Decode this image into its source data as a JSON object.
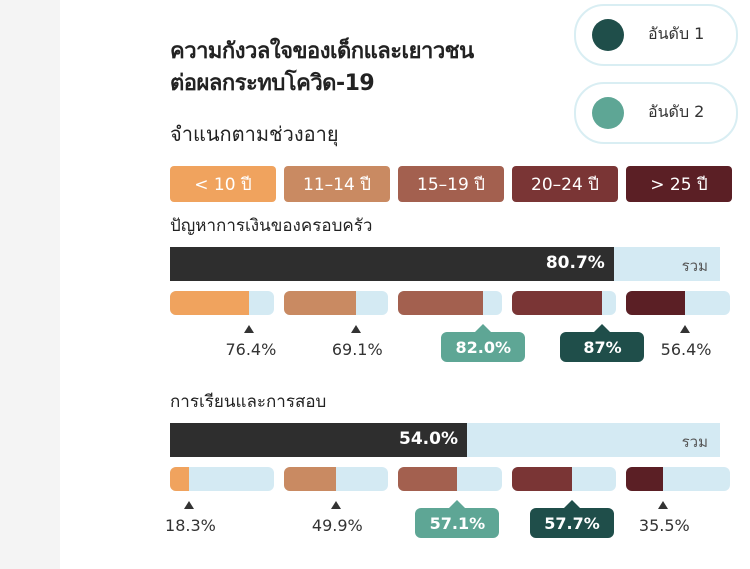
{
  "header": {
    "title_line1": "ความกังวลใจของเด็กและเยาวชน",
    "title_line2": "ต่อผลกระทบโควิด-19",
    "subtitle": "จำแนกตามช่วงอายุ"
  },
  "legend": [
    {
      "label": "อันดับ 1",
      "color": "#1f4e4a"
    },
    {
      "label": "อันดับ 2",
      "color": "#5ea695"
    }
  ],
  "age_groups": [
    {
      "label": "< 10 ปี",
      "color": "#f0a35e"
    },
    {
      "label": "11–14 ปี",
      "color": "#c98a62"
    },
    {
      "label": "15–19 ปี",
      "color": "#a3604f"
    },
    {
      "label": "20–24 ปี",
      "color": "#7a3535"
    },
    {
      "label": "> 25 ปี",
      "color": "#5b1f25"
    }
  ],
  "total_tag": "รวม",
  "chart_data": {
    "type": "bar",
    "title": "ความกังวลใจของเด็กและเยาวชนต่อผลกระทบโควิด-19",
    "subtitle": "จำแนกตามช่วงอายุ",
    "categories": [
      "< 10 ปี",
      "11–14 ปี",
      "15–19 ปี",
      "20–24 ปี",
      "> 25 ปี"
    ],
    "ylim": [
      0,
      100
    ],
    "groups": [
      {
        "name": "ปัญหาการเงินของครอบครัว",
        "total": 80.7,
        "total_label": "80.7%",
        "values": [
          76.4,
          69.1,
          82.0,
          87,
          56.4
        ],
        "labels": [
          "76.4%",
          "69.1%",
          "82.0%",
          "87%",
          "56.4%"
        ],
        "rank": [
          0,
          0,
          2,
          1,
          0
        ]
      },
      {
        "name": "การเรียนและการสอบ",
        "total": 54.0,
        "total_label": "54.0%",
        "values": [
          18.3,
          49.9,
          57.1,
          57.7,
          35.5
        ],
        "labels": [
          "18.3%",
          "49.9%",
          "57.1%",
          "57.7%",
          "35.5%"
        ],
        "rank": [
          0,
          0,
          2,
          1,
          0
        ]
      }
    ]
  }
}
